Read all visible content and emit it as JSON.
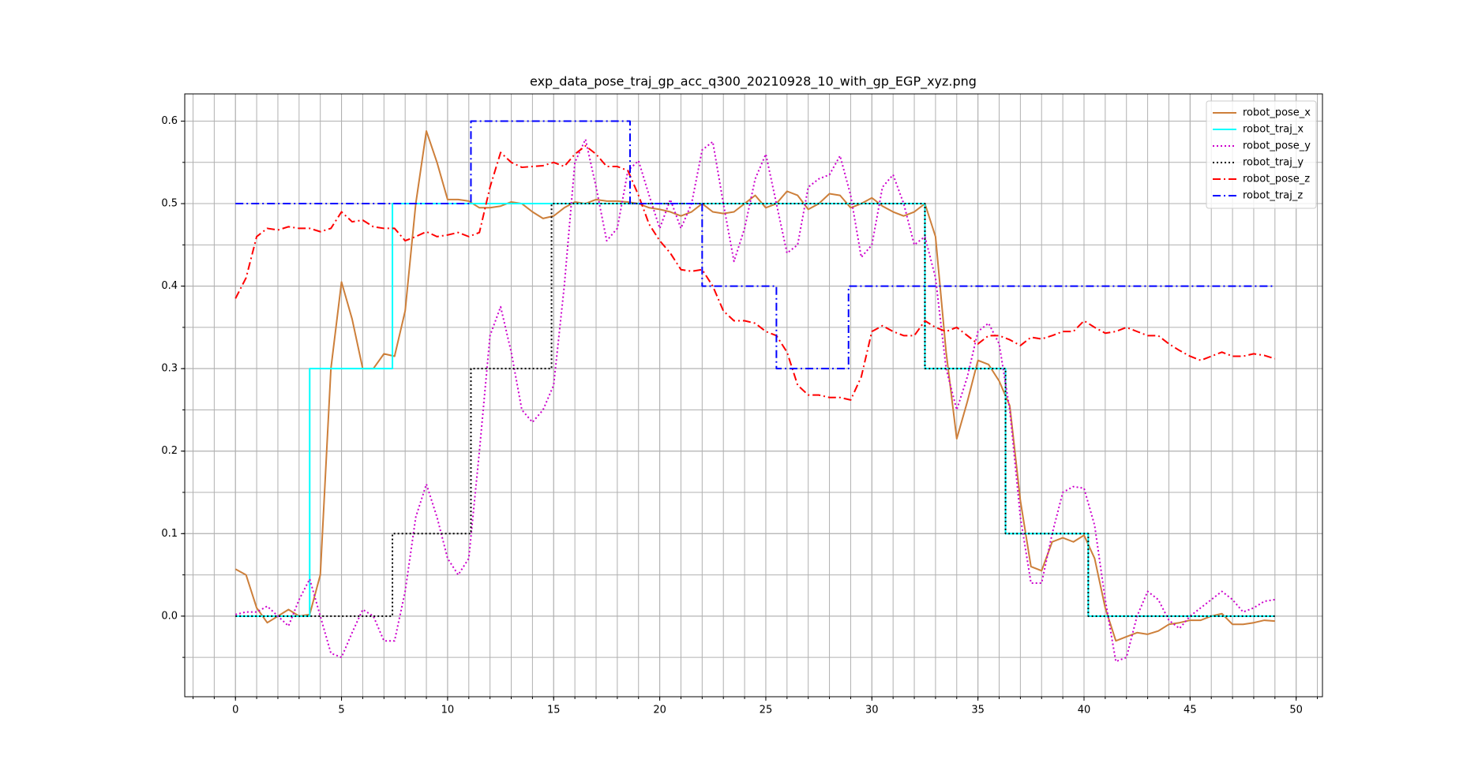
{
  "chart_data": {
    "type": "line",
    "title": "exp_data_pose_traj_gp_acc_q300_20210928_10_with_gp_EGP_xyz.png",
    "x": [
      0,
      0.5,
      1,
      1.5,
      2,
      2.5,
      3,
      3.5,
      4,
      4.5,
      5,
      5.5,
      6,
      6.5,
      7,
      7.5,
      8,
      8.5,
      9,
      9.5,
      10,
      10.5,
      11,
      11.5,
      12,
      12.5,
      13,
      13.5,
      14,
      14.5,
      15,
      15.5,
      16,
      16.5,
      17,
      17.5,
      18,
      18.5,
      19,
      19.5,
      20,
      20.5,
      21,
      21.5,
      22,
      22.5,
      23,
      23.5,
      24,
      24.5,
      25,
      25.5,
      26,
      26.5,
      27,
      27.5,
      28,
      28.5,
      29,
      29.5,
      30,
      30.5,
      31,
      31.5,
      32,
      32.5,
      33,
      33.5,
      34,
      34.5,
      35,
      35.5,
      36,
      36.5,
      37,
      37.5,
      38,
      38.5,
      39,
      39.5,
      40,
      40.5,
      41,
      41.5,
      42,
      42.5,
      43,
      43.5,
      44,
      44.5,
      45,
      45.5,
      46,
      46.5,
      47,
      47.5,
      48,
      48.5,
      49
    ],
    "series": [
      {
        "name": "robot_pose_x",
        "color": "#cd7f3a",
        "style": "solid",
        "values": [
          0.057,
          0.05,
          0.01,
          -0.008,
          0.0,
          0.008,
          0.0,
          0.002,
          0.05,
          0.3,
          0.405,
          0.36,
          0.3,
          0.3,
          0.318,
          0.315,
          0.37,
          0.5,
          0.588,
          0.55,
          0.505,
          0.505,
          0.503,
          0.495,
          0.495,
          0.497,
          0.502,
          0.5,
          0.49,
          0.482,
          0.485,
          0.495,
          0.502,
          0.5,
          0.505,
          0.503,
          0.503,
          0.502,
          0.5,
          0.495,
          0.493,
          0.49,
          0.485,
          0.49,
          0.5,
          0.49,
          0.488,
          0.49,
          0.5,
          0.51,
          0.495,
          0.5,
          0.515,
          0.51,
          0.493,
          0.5,
          0.512,
          0.51,
          0.495,
          0.5,
          0.507,
          0.497,
          0.49,
          0.485,
          0.49,
          0.5,
          0.46,
          0.32,
          0.215,
          0.26,
          0.31,
          0.305,
          0.285,
          0.255,
          0.14,
          0.06,
          0.055,
          0.09,
          0.095,
          0.09,
          0.098,
          0.07,
          0.01,
          -0.03,
          -0.025,
          -0.02,
          -0.022,
          -0.018,
          -0.01,
          -0.008,
          -0.005,
          -0.005,
          0.0,
          0.003,
          -0.01,
          -0.01,
          -0.008,
          -0.005,
          -0.006
        ]
      },
      {
        "name": "robot_traj_x",
        "color": "#00ffff",
        "style": "solid",
        "x": [
          0,
          3.5,
          3.5,
          7.4,
          7.4,
          32.5,
          32.5,
          36.3,
          36.3,
          40.2,
          40.2,
          49
        ],
        "values": [
          0,
          0,
          0.3,
          0.3,
          0.5,
          0.5,
          0.3,
          0.3,
          0.1,
          0.1,
          0,
          0
        ]
      },
      {
        "name": "robot_pose_y",
        "color": "#cc00cc",
        "style": "dotted",
        "values": [
          0.002,
          0.005,
          0.005,
          0.012,
          0.0,
          -0.012,
          0.02,
          0.045,
          0.0,
          -0.045,
          -0.05,
          -0.02,
          0.008,
          0.0,
          -0.03,
          -0.03,
          0.03,
          0.12,
          0.16,
          0.12,
          0.07,
          0.05,
          0.07,
          0.2,
          0.34,
          0.375,
          0.32,
          0.25,
          0.235,
          0.25,
          0.28,
          0.4,
          0.55,
          0.578,
          0.52,
          0.455,
          0.47,
          0.54,
          0.552,
          0.51,
          0.47,
          0.505,
          0.47,
          0.5,
          0.565,
          0.575,
          0.5,
          0.43,
          0.47,
          0.53,
          0.56,
          0.5,
          0.44,
          0.45,
          0.52,
          0.53,
          0.535,
          0.558,
          0.51,
          0.435,
          0.45,
          0.52,
          0.535,
          0.5,
          0.45,
          0.46,
          0.41,
          0.3,
          0.25,
          0.29,
          0.345,
          0.355,
          0.33,
          0.25,
          0.12,
          0.04,
          0.04,
          0.1,
          0.15,
          0.157,
          0.155,
          0.11,
          0.02,
          -0.055,
          -0.05,
          0.0,
          0.03,
          0.02,
          -0.005,
          -0.015,
          0.0,
          0.01,
          0.02,
          0.03,
          0.02,
          0.005,
          0.01,
          0.018,
          0.02
        ]
      },
      {
        "name": "robot_traj_y",
        "color": "#000000",
        "style": "dotted",
        "x": [
          0,
          7.4,
          7.4,
          11.1,
          11.1,
          14.9,
          14.9,
          32.5,
          32.5,
          36.3,
          36.3,
          40.2,
          40.2,
          49
        ],
        "values": [
          0,
          0,
          0.1,
          0.1,
          0.3,
          0.3,
          0.5,
          0.5,
          0.3,
          0.3,
          0.1,
          0.1,
          0,
          0
        ]
      },
      {
        "name": "robot_pose_z",
        "color": "#ff0000",
        "style": "dashdot",
        "values": [
          0.385,
          0.41,
          0.46,
          0.47,
          0.468,
          0.472,
          0.47,
          0.47,
          0.466,
          0.47,
          0.49,
          0.478,
          0.48,
          0.472,
          0.47,
          0.47,
          0.455,
          0.46,
          0.466,
          0.46,
          0.462,
          0.465,
          0.46,
          0.465,
          0.52,
          0.562,
          0.55,
          0.544,
          0.545,
          0.546,
          0.55,
          0.545,
          0.56,
          0.57,
          0.56,
          0.545,
          0.545,
          0.54,
          0.51,
          0.475,
          0.455,
          0.44,
          0.42,
          0.418,
          0.42,
          0.4,
          0.37,
          0.358,
          0.358,
          0.355,
          0.345,
          0.34,
          0.32,
          0.28,
          0.268,
          0.268,
          0.265,
          0.265,
          0.262,
          0.29,
          0.345,
          0.352,
          0.345,
          0.34,
          0.34,
          0.358,
          0.35,
          0.345,
          0.35,
          0.34,
          0.33,
          0.34,
          0.34,
          0.335,
          0.328,
          0.338,
          0.336,
          0.34,
          0.345,
          0.345,
          0.358,
          0.35,
          0.343,
          0.345,
          0.35,
          0.345,
          0.34,
          0.34,
          0.33,
          0.322,
          0.315,
          0.31,
          0.315,
          0.32,
          0.315,
          0.315,
          0.318,
          0.316,
          0.312
        ]
      },
      {
        "name": "robot_traj_z",
        "color": "#0000ff",
        "style": "dashdot",
        "x": [
          0,
          11.1,
          11.1,
          18.6,
          18.6,
          22,
          22,
          25.5,
          25.5,
          28.9,
          28.9,
          49
        ],
        "values": [
          0.5,
          0.5,
          0.6,
          0.6,
          0.5,
          0.5,
          0.4,
          0.4,
          0.3,
          0.3,
          0.4,
          0.4
        ]
      }
    ],
    "xlim": [
      -2.39,
      51.24
    ],
    "ylim": [
      -0.0977,
      0.633
    ],
    "xticks": [
      0,
      5,
      10,
      15,
      20,
      25,
      30,
      35,
      40,
      45,
      50
    ],
    "yticks": [
      {
        "value": 0,
        "label": "0.0"
      },
      0.1,
      0.2,
      0.3,
      0.4,
      0.5,
      0.6
    ],
    "grid": true,
    "minor_grid": {
      "x": 1,
      "y": 0.05
    },
    "legend": "upper right"
  }
}
